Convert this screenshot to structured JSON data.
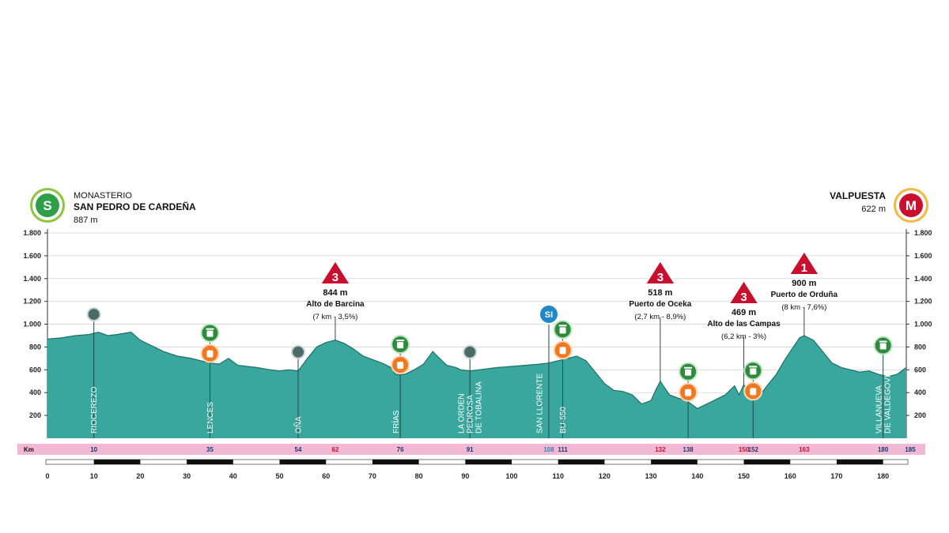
{
  "start": {
    "badge": "S",
    "line1": "MONASTERIO",
    "line2": "SAN PEDRO DE CARDEÑA",
    "elev": "887 m"
  },
  "finish": {
    "badge": "M",
    "name": "VALPUESTA",
    "elev": "622 m"
  },
  "km_label": "Km",
  "colors": {
    "profile": "#3aa79f",
    "profile_dark": "#1f6f64",
    "km_band": "#f2b8d4",
    "red": "#c8102e",
    "green": "#2e8b3e",
    "orange": "#f07820",
    "blue": "#1f88c8"
  },
  "chart_data": {
    "type": "area",
    "xlabel": "",
    "ylabel": "",
    "xlim": [
      0,
      185
    ],
    "ylim": [
      0,
      1800
    ],
    "y_ticks": [
      "200",
      "400",
      "600",
      "800",
      "1.000",
      "1.200",
      "1.400",
      "1.600",
      "1.800"
    ],
    "x_ticks": [
      "0",
      "10",
      "20",
      "30",
      "40",
      "50",
      "60",
      "70",
      "80",
      "90",
      "100",
      "110",
      "120",
      "130",
      "140",
      "150",
      "160",
      "170",
      "180"
    ],
    "x": [
      0,
      3,
      6,
      9,
      10,
      11,
      13,
      15,
      18,
      20,
      22,
      25,
      28,
      31,
      33,
      35,
      37,
      39,
      41,
      43,
      45,
      48,
      50,
      52,
      54,
      56,
      58,
      60,
      62,
      64,
      66,
      68,
      70,
      72,
      74,
      75,
      77,
      79,
      81,
      83,
      84,
      86,
      88,
      89,
      91,
      93,
      95,
      97,
      100,
      103,
      106,
      108,
      110,
      112,
      114,
      116,
      118,
      120,
      122,
      124,
      126,
      128,
      130,
      131,
      132,
      133,
      134,
      136,
      137,
      138,
      140,
      142,
      144,
      146,
      148,
      149,
      150,
      151,
      152,
      153,
      155,
      157,
      159,
      161,
      162,
      163,
      165,
      167,
      169,
      171,
      173,
      175,
      177,
      179,
      181,
      183,
      185
    ],
    "elevation": [
      870,
      880,
      900,
      910,
      920,
      930,
      900,
      910,
      930,
      860,
      820,
      760,
      720,
      700,
      680,
      660,
      650,
      700,
      640,
      630,
      620,
      600,
      590,
      600,
      590,
      700,
      800,
      840,
      860,
      830,
      780,
      720,
      690,
      660,
      620,
      560,
      560,
      600,
      650,
      760,
      720,
      640,
      620,
      600,
      590,
      600,
      610,
      620,
      630,
      640,
      650,
      660,
      680,
      700,
      720,
      680,
      580,
      480,
      420,
      410,
      380,
      300,
      330,
      420,
      500,
      440,
      380,
      350,
      340,
      320,
      260,
      300,
      340,
      380,
      460,
      380,
      470,
      400,
      330,
      350,
      460,
      560,
      700,
      820,
      880,
      900,
      860,
      760,
      660,
      620,
      600,
      580,
      590,
      560,
      540,
      560,
      620
    ],
    "km_markers": [
      {
        "km": 10,
        "label": "10",
        "color": "dark"
      },
      {
        "km": 35,
        "label": "35",
        "color": "dark"
      },
      {
        "km": 54,
        "label": "54",
        "color": "dark"
      },
      {
        "km": 62,
        "label": "62",
        "color": "red"
      },
      {
        "km": 76,
        "label": "76",
        "color": "dark"
      },
      {
        "km": 91,
        "label": "91",
        "color": "dark"
      },
      {
        "km": 108,
        "label": "108",
        "color": "blue"
      },
      {
        "km": 111,
        "label": "111",
        "color": "dark"
      },
      {
        "km": 132,
        "label": "132",
        "color": "red"
      },
      {
        "km": 138,
        "label": "138",
        "color": "dark"
      },
      {
        "km": 150,
        "label": "150",
        "color": "red"
      },
      {
        "km": 152,
        "label": "152",
        "color": "dark"
      },
      {
        "km": 163,
        "label": "163",
        "color": "red"
      },
      {
        "km": 180,
        "label": "180",
        "color": "dark"
      },
      {
        "km": 185,
        "label": "185",
        "color": "dark"
      }
    ],
    "places": [
      {
        "km": 10,
        "lines": [
          "RIOCEREZO"
        ]
      },
      {
        "km": 35,
        "lines": [
          "LENCES"
        ]
      },
      {
        "km": 54,
        "lines": [
          "OÑA"
        ]
      },
      {
        "km": 75,
        "lines": [
          "FRÍAS"
        ]
      },
      {
        "km": 91,
        "lines": [
          "LA ORDEN",
          "PEDROSA",
          "DE TOBALINA"
        ]
      },
      {
        "km": 106,
        "lines": [
          "SAN LLORENTE"
        ]
      },
      {
        "km": 111,
        "lines": [
          "BU-550"
        ]
      },
      {
        "km": 180,
        "lines": [
          "VILLANUEVA",
          "DE VALDEGOVIA"
        ]
      }
    ],
    "climbs": [
      {
        "km": 62,
        "cat": "3",
        "elev": "844 m",
        "name": "Alto de Barcina",
        "detail": "(7 km - 3,5%)"
      },
      {
        "km": 132,
        "cat": "3",
        "elev": "518 m",
        "name": "Puerto de Oceka",
        "detail": "(2,7 km - 8,9%)"
      },
      {
        "km": 150,
        "cat": "3",
        "elev": "469 m",
        "name": "Alto de las Campas",
        "detail": "(6,2 km - 3%)"
      },
      {
        "km": 163,
        "cat": "1",
        "elev": "900 m",
        "name": "Puerto de Orduña",
        "detail": "(8 km - 7,6%)"
      }
    ],
    "markers": [
      {
        "km": 10,
        "type": "grey"
      },
      {
        "km": 35,
        "type": "green"
      },
      {
        "km": 35,
        "type": "orange"
      },
      {
        "km": 54,
        "type": "grey"
      },
      {
        "km": 76,
        "type": "green"
      },
      {
        "km": 76,
        "type": "orange"
      },
      {
        "km": 91,
        "type": "grey"
      },
      {
        "km": 108,
        "type": "sprint",
        "label": "SI"
      },
      {
        "km": 111,
        "type": "green"
      },
      {
        "km": 111,
        "type": "orange"
      },
      {
        "km": 138,
        "type": "green"
      },
      {
        "km": 138,
        "type": "orange"
      },
      {
        "km": 152,
        "type": "green"
      },
      {
        "km": 152,
        "type": "orange"
      },
      {
        "km": 180,
        "type": "green"
      }
    ]
  }
}
